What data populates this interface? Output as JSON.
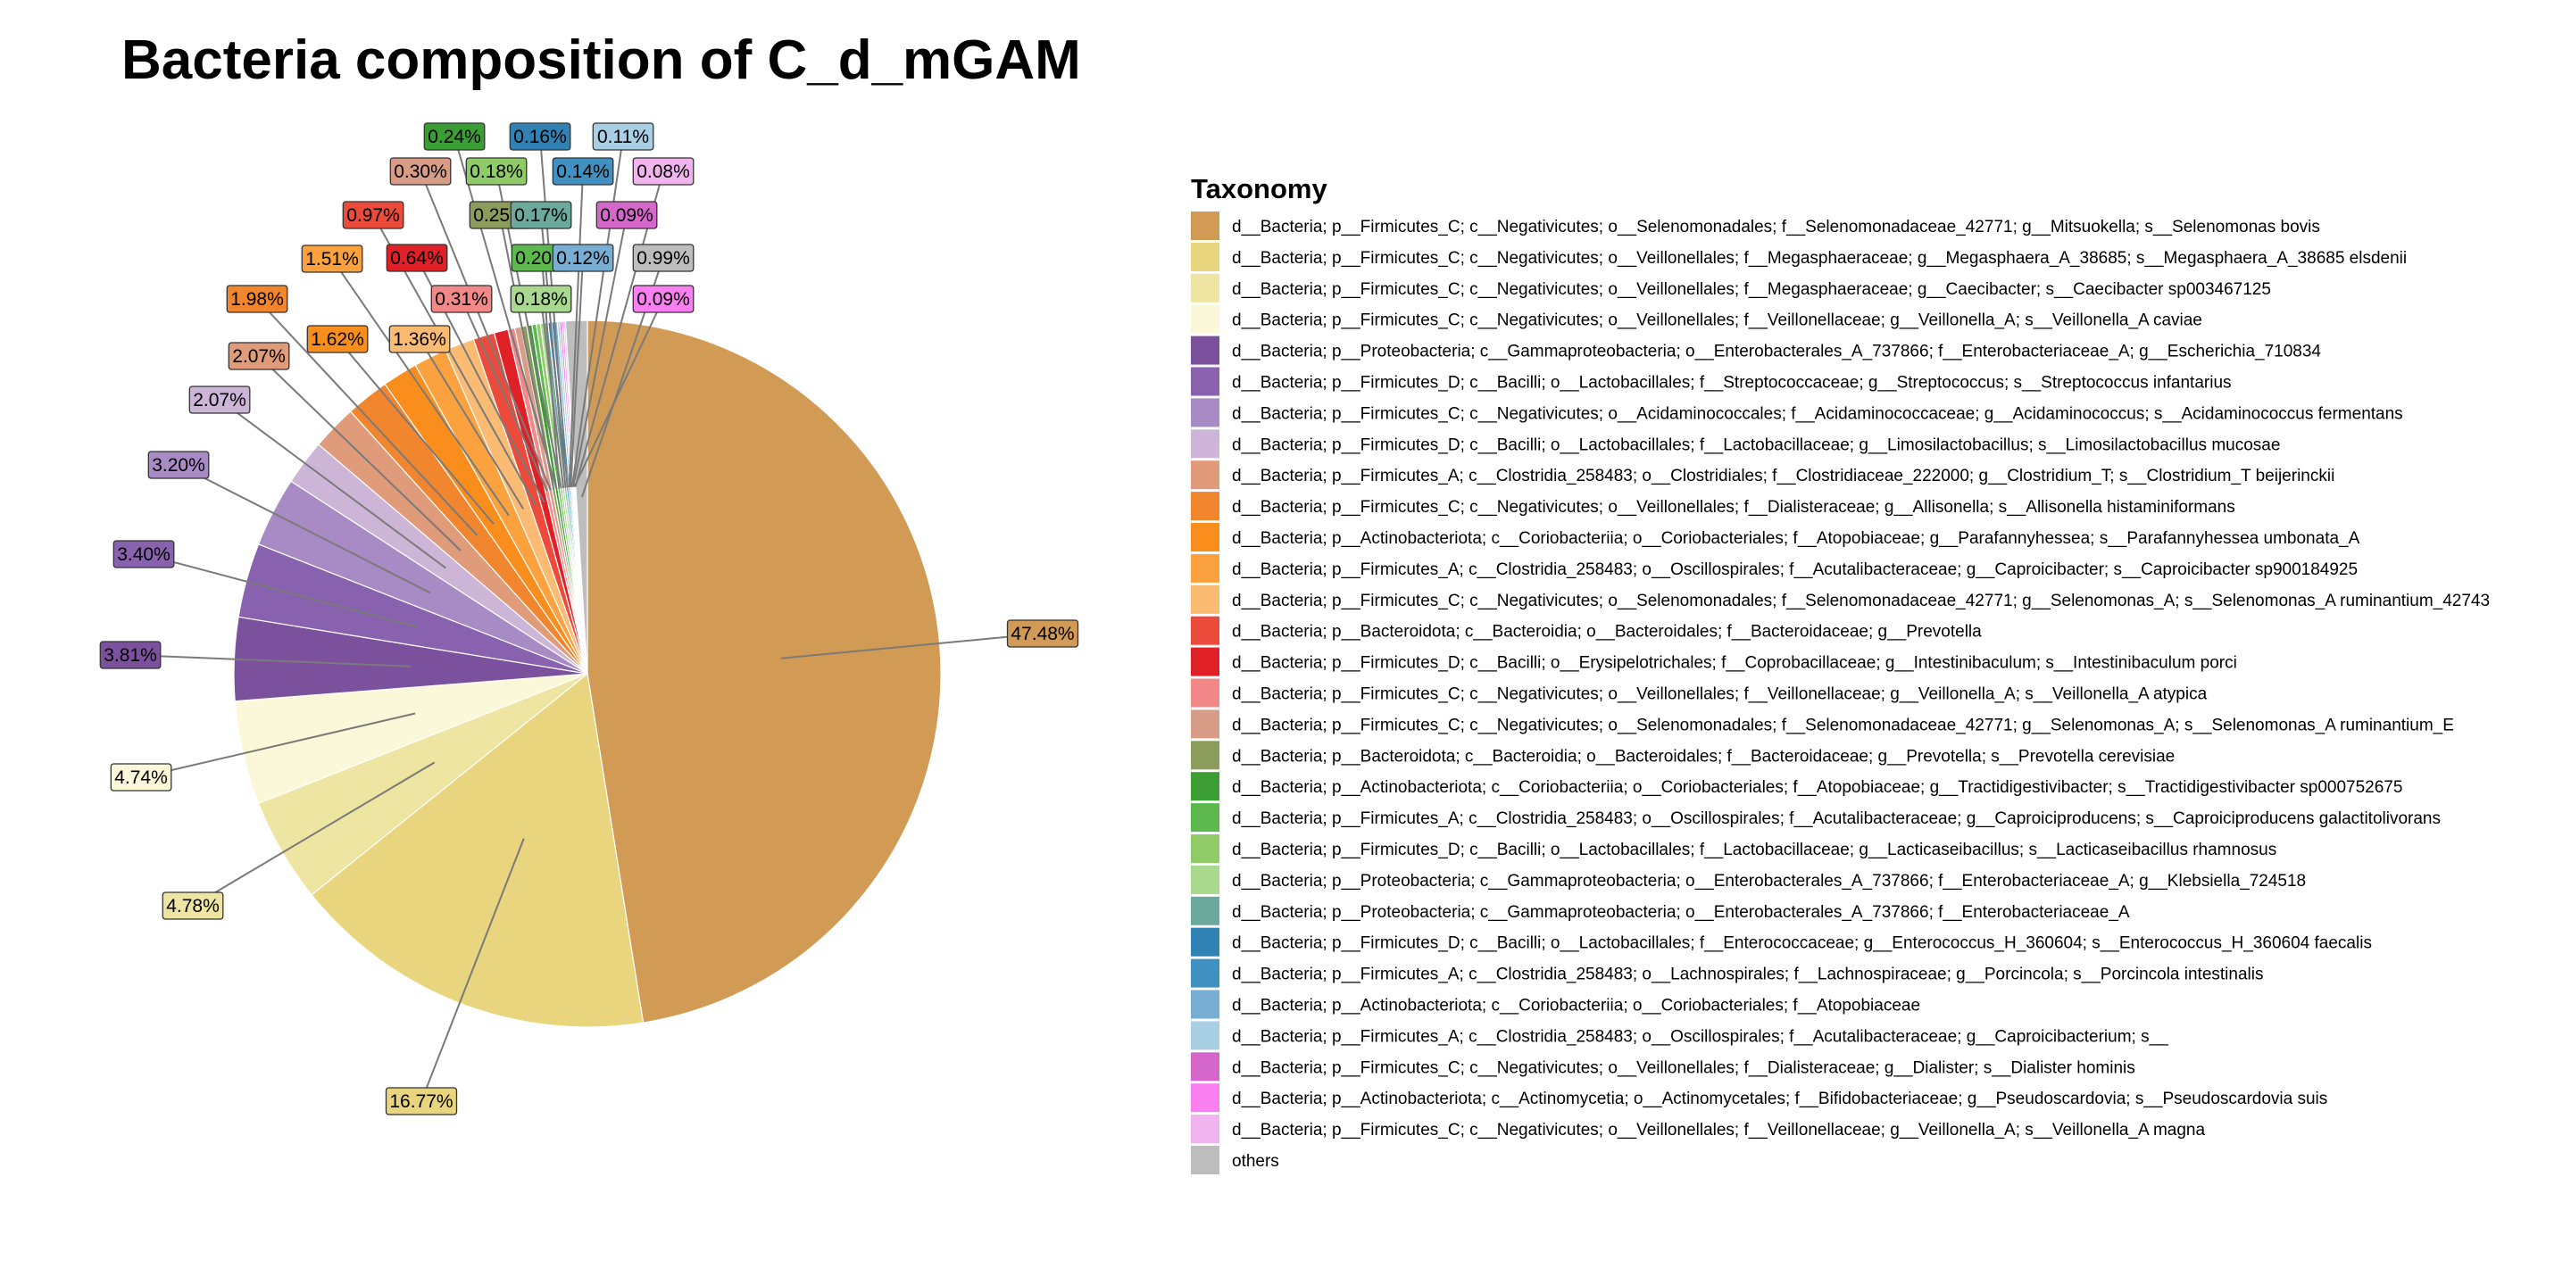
{
  "chart_data": {
    "type": "pie",
    "title": "Bacteria composition of C_d_mGAM",
    "legend_title": "Taxonomy",
    "legend_position": "right",
    "series": [
      {
        "name": "d__Bacteria; p__Firmicutes_C; c__Negativicutes; o__Selenomonadales; f__Selenomonadaceae_42771; g__Mitsuokella; s__Selenomonas bovis",
        "value": 47.48,
        "label": "47.48%",
        "color": "#D19A55"
      },
      {
        "name": "d__Bacteria; p__Firmicutes_C; c__Negativicutes; o__Veillonellales; f__Megasphaeraceae; g__Megasphaera_A_38685; s__Megasphaera_A_38685 elsdenii",
        "value": 16.77,
        "label": "16.77%",
        "color": "#E8D57D"
      },
      {
        "name": "d__Bacteria; p__Firmicutes_C; c__Negativicutes; o__Veillonellales; f__Megasphaeraceae; g__Caecibacter; s__Caecibacter sp003467125",
        "value": 4.78,
        "label": "4.78%",
        "color": "#EDE5A1"
      },
      {
        "name": "d__Bacteria; p__Firmicutes_C; c__Negativicutes; o__Veillonellales; f__Veillonellaceae; g__Veillonella_A; s__Veillonella_A caviae",
        "value": 4.74,
        "label": "4.74%",
        "color": "#FAF8D8"
      },
      {
        "name": "d__Bacteria; p__Proteobacteria; c__Gammaproteobacteria; o__Enterobacterales_A_737866; f__Enterobacteriaceae_A; g__Escherichia_710834",
        "value": 3.81,
        "label": "3.81%",
        "color": "#7B519D"
      },
      {
        "name": "d__Bacteria; p__Firmicutes_D; c__Bacilli; o__Lactobacillales; f__Streptococcaceae; g__Streptococcus; s__Streptococcus infantarius",
        "value": 3.4,
        "label": "3.40%",
        "color": "#8862AE"
      },
      {
        "name": "d__Bacteria; p__Firmicutes_C; c__Negativicutes; o__Acidaminococcales; f__Acidaminococcaceae; g__Acidaminococcus; s__Acidaminococcus fermentans",
        "value": 3.2,
        "label": "3.20%",
        "color": "#A88BC4"
      },
      {
        "name": "d__Bacteria; p__Firmicutes_D; c__Bacilli; o__Lactobacillales; f__Lactobacillaceae; g__Limosilactobacillus; s__Limosilactobacillus mucosae",
        "value": 2.07,
        "label": "2.07%",
        "color": "#CDB5D7"
      },
      {
        "name": "d__Bacteria; p__Firmicutes_A; c__Clostridia_258483; o__Clostridiales; f__Clostridiaceae_222000; g__Clostridium_T; s__Clostridium_T beijerinckii",
        "value": 2.07,
        "label": "2.07%",
        "color": "#E09B7B"
      },
      {
        "name": "d__Bacteria; p__Firmicutes_C; c__Negativicutes; o__Veillonellales; f__Dialisteraceae; g__Allisonella; s__Allisonella histaminiformans",
        "value": 1.98,
        "label": "1.98%",
        "color": "#F2862E"
      },
      {
        "name": "d__Bacteria; p__Actinobacteriota; c__Coriobacteriia; o__Coriobacteriales; f__Atopobiaceae; g__Parafannyhessea; s__Parafannyhessea umbonata_A",
        "value": 1.62,
        "label": "1.62%",
        "color": "#FA8E1C"
      },
      {
        "name": "d__Bacteria; p__Firmicutes_A; c__Clostridia_258483; o__Oscillospirales; f__Acutalibacteraceae; g__Caproicibacter; s__Caproicibacter sp900184925",
        "value": 1.51,
        "label": "1.51%",
        "color": "#FBA13E"
      },
      {
        "name": "d__Bacteria; p__Firmicutes_C; c__Negativicutes; o__Selenomonadales; f__Selenomonadaceae_42771; g__Selenomonas_A; s__Selenomonas_A ruminantium_42743",
        "value": 1.36,
        "label": "1.36%",
        "color": "#FBBB73"
      },
      {
        "name": "d__Bacteria; p__Bacteroidota; c__Bacteroidia; o__Bacteroidales; f__Bacteroidaceae; g__Prevotella",
        "value": 0.97,
        "label": "0.97%",
        "color": "#EC4B3B"
      },
      {
        "name": "d__Bacteria; p__Firmicutes_D; c__Bacilli; o__Erysipelotrichales; f__Coprobacillaceae; g__Intestinibaculum; s__Intestinibaculum porci",
        "value": 0.64,
        "label": "0.64%",
        "color": "#E02027"
      },
      {
        "name": "d__Bacteria; p__Firmicutes_C; c__Negativicutes; o__Veillonellales; f__Veillonellaceae; g__Veillonella_A; s__Veillonella_A atypica",
        "value": 0.31,
        "label": "0.31%",
        "color": "#F28888"
      },
      {
        "name": "d__Bacteria; p__Firmicutes_C; c__Negativicutes; o__Selenomonadales; f__Selenomonadaceae_42771; g__Selenomonas_A; s__Selenomonas_A ruminantium_E",
        "value": 0.3,
        "label": "0.30%",
        "color": "#D89C87"
      },
      {
        "name": "d__Bacteria; p__Bacteroidota; c__Bacteroidia; o__Bacteroidales; f__Bacteroidaceae; g__Prevotella; s__Prevotella cerevisiae",
        "value": 0.25,
        "label": "0.25%",
        "color": "#8C9C5B"
      },
      {
        "name": "d__Bacteria; p__Actinobacteriota; c__Coriobacteriia; o__Coriobacteriales; f__Atopobiaceae; g__Tractidigestivibacter; s__Tractidigestivibacter sp000752675",
        "value": 0.24,
        "label": "0.24%",
        "color": "#3A9E35"
      },
      {
        "name": "d__Bacteria; p__Firmicutes_A; c__Clostridia_258483; o__Oscillospirales; f__Acutalibacteraceae; g__Caproiciproducens; s__Caproiciproducens galactitolivorans",
        "value": 0.2,
        "label": "0.20%",
        "color": "#5DB84D"
      },
      {
        "name": "d__Bacteria; p__Firmicutes_D; c__Bacilli; o__Lactobacillales; f__Lactobacillaceae; g__Lacticaseibacillus; s__Lacticaseibacillus rhamnosus",
        "value": 0.18,
        "label": "0.18%",
        "color": "#8FCB67"
      },
      {
        "name": "d__Bacteria; p__Proteobacteria; c__Gammaproteobacteria; o__Enterobacterales_A_737866; f__Enterobacteriaceae_A; g__Klebsiella_724518",
        "value": 0.18,
        "label": "0.18%",
        "color": "#A8D98F"
      },
      {
        "name": "d__Bacteria; p__Proteobacteria; c__Gammaproteobacteria; o__Enterobacterales_A_737866; f__Enterobacteriaceae_A",
        "value": 0.17,
        "label": "0.17%",
        "color": "#6AA99B"
      },
      {
        "name": "d__Bacteria; p__Firmicutes_D; c__Bacilli; o__Lactobacillales; f__Enterococcaceae; g__Enterococcus_H_360604; s__Enterococcus_H_360604 faecalis",
        "value": 0.16,
        "label": "0.16%",
        "color": "#3182B4"
      },
      {
        "name": "d__Bacteria; p__Firmicutes_A; c__Clostridia_258483; o__Lachnospirales; f__Lachnospiraceae; g__Porcincola; s__Porcincola intestinalis",
        "value": 0.14,
        "label": "0.14%",
        "color": "#4190C2"
      },
      {
        "name": "d__Bacteria; p__Actinobacteriota; c__Coriobacteriia; o__Coriobacteriales; f__Atopobiaceae",
        "value": 0.12,
        "label": "0.12%",
        "color": "#79AED4"
      },
      {
        "name": "d__Bacteria; p__Firmicutes_A; c__Clostridia_258483; o__Oscillospirales; f__Acutalibacteraceae; g__Caproicibacterium; s__",
        "value": 0.11,
        "label": "0.11%",
        "color": "#A9CFE5"
      },
      {
        "name": "d__Bacteria; p__Firmicutes_C; c__Negativicutes; o__Veillonellales; f__Dialisteraceae; g__Dialister; s__Dialister hominis",
        "value": 0.09,
        "label": "0.09%",
        "color": "#D467C9"
      },
      {
        "name": "d__Bacteria; p__Actinobacteriota; c__Actinomycetia; o__Actinomycetales; f__Bifidobacteriaceae; g__Pseudoscardovia; s__Pseudoscardovia suis",
        "value": 0.09,
        "label": "0.09%",
        "color": "#FA7FF0"
      },
      {
        "name": "d__Bacteria; p__Firmicutes_C; c__Negativicutes; o__Veillonellales; f__Veillonellaceae; g__Veillonella_A; s__Veillonella_A magna",
        "value": 0.08,
        "label": "0.08%",
        "color": "#F2B4EE"
      },
      {
        "name": "others",
        "value": 0.99,
        "label": "0.99%",
        "color": "#BDBDBD"
      }
    ]
  }
}
